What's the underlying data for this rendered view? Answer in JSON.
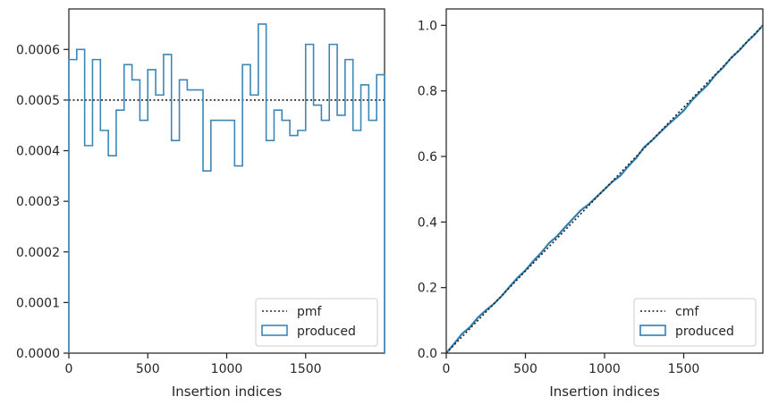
{
  "chart_data": [
    {
      "type": "step-histogram",
      "xlabel": "Insertion indices",
      "ylabel": "",
      "xlim": [
        0,
        2000
      ],
      "ylim": [
        0,
        0.00068
      ],
      "xticks": [
        0,
        500,
        1000,
        1500
      ],
      "xtick_labels": [
        "0",
        "500",
        "1000",
        "1500"
      ],
      "yticks": [
        0,
        0.0001,
        0.0002,
        0.0003,
        0.0004,
        0.0005,
        0.0006
      ],
      "ytick_labels": [
        "0.0000",
        "0.0001",
        "0.0002",
        "0.0003",
        "0.0004",
        "0.0005",
        "0.0006"
      ],
      "legend_position": "lower-right",
      "reference": {
        "name": "pmf",
        "value": 0.0005,
        "style": "dotted",
        "color": "#222222"
      },
      "series": [
        {
          "name": "produced",
          "color": "#3a87b8",
          "bin_edges": [
            0,
            50,
            100,
            150,
            200,
            250,
            300,
            350,
            400,
            450,
            500,
            550,
            600,
            650,
            700,
            750,
            800,
            850,
            900,
            950,
            1000,
            1050,
            1100,
            1150,
            1200,
            1250,
            1300,
            1350,
            1400,
            1450,
            1500,
            1550,
            1600,
            1650,
            1700,
            1750,
            1800,
            1850,
            1900,
            1950,
            2000
          ],
          "values": [
            0.00058,
            0.0006,
            0.00041,
            0.00058,
            0.00044,
            0.00039,
            0.00048,
            0.00057,
            0.00054,
            0.00046,
            0.00056,
            0.00051,
            0.00059,
            0.00042,
            0.00054,
            0.00052,
            0.00052,
            0.00036,
            0.00046,
            0.00046,
            0.00046,
            0.00037,
            0.00057,
            0.00051,
            0.00065,
            0.00042,
            0.00048,
            0.00046,
            0.00043,
            0.00044,
            0.00061,
            0.00049,
            0.00046,
            0.00061,
            0.00047,
            0.00058,
            0.00044,
            0.00053,
            0.00046,
            0.00055
          ]
        }
      ]
    },
    {
      "type": "step-cumulative",
      "xlabel": "Insertion indices",
      "ylabel": "",
      "xlim": [
        0,
        2000
      ],
      "ylim": [
        0,
        1.05
      ],
      "xticks": [
        0,
        500,
        1000,
        1500
      ],
      "xtick_labels": [
        "0",
        "500",
        "1000",
        "1500"
      ],
      "yticks": [
        0,
        0.2,
        0.4,
        0.6,
        0.8,
        1.0
      ],
      "ytick_labels": [
        "0.0",
        "0.2",
        "0.4",
        "0.6",
        "0.8",
        "1.0"
      ],
      "legend_position": "lower-right",
      "reference": {
        "name": "cmf",
        "from": [
          0,
          0
        ],
        "to": [
          2000,
          1.0
        ],
        "style": "dotted",
        "color": "#222222"
      },
      "series": [
        {
          "name": "produced",
          "color": "#2f7fb3",
          "note_source": "cumulative of left panel histogram"
        }
      ]
    }
  ]
}
